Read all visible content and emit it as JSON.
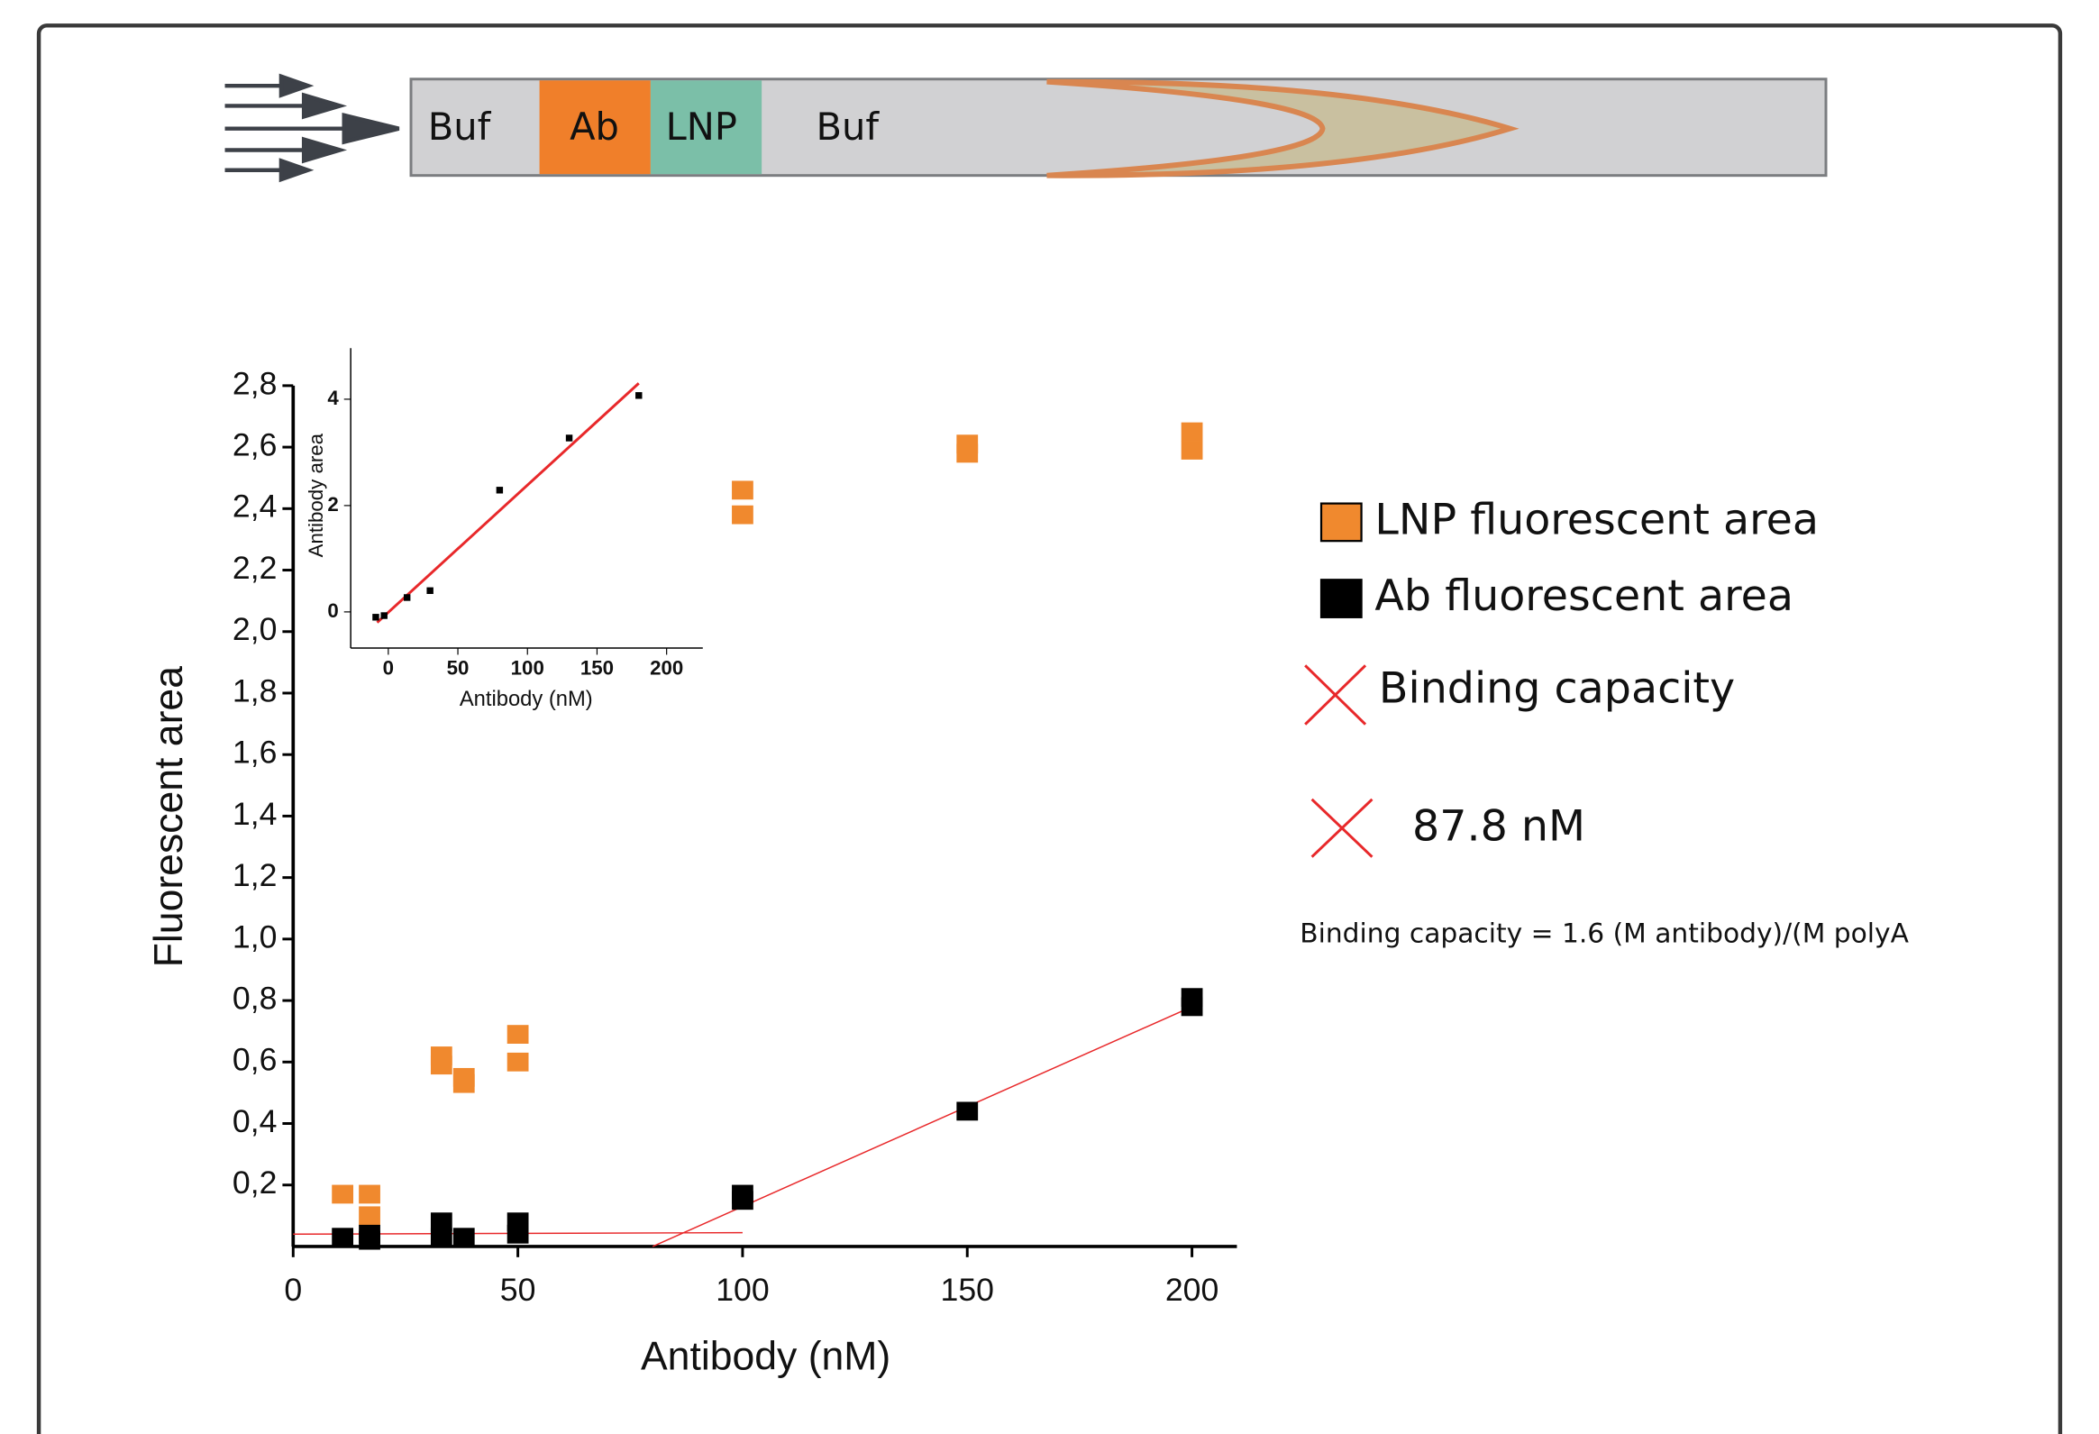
{
  "diagram": {
    "segments": [
      "Buf",
      "Ab",
      "LNP",
      "Buf"
    ]
  },
  "chart_data": [
    {
      "type": "scatter",
      "x_label": "Antibody (nM)",
      "y_label": "Fluorescent area",
      "xlim": [
        0,
        210
      ],
      "ylim": [
        0,
        2.8
      ],
      "xticks": [
        0,
        50,
        100,
        150,
        200
      ],
      "yticks": [
        {
          "value": 0.2,
          "label": "0,2"
        },
        {
          "value": 0.4,
          "label": "0,4"
        },
        {
          "value": 0.6,
          "label": "0,6"
        },
        {
          "value": 0.8,
          "label": "0,8"
        },
        {
          "value": 1.0,
          "label": "1,0"
        },
        {
          "value": 1.2,
          "label": "1,2"
        },
        {
          "value": 1.4,
          "label": "1,4"
        },
        {
          "value": 1.6,
          "label": "1,6"
        },
        {
          "value": 1.8,
          "label": "1,8"
        },
        {
          "value": 2.0,
          "label": "2,0"
        },
        {
          "value": 2.2,
          "label": "2,2"
        },
        {
          "value": 2.4,
          "label": "2,4"
        },
        {
          "value": 2.6,
          "label": "2,6"
        },
        {
          "value": 2.8,
          "label": "2,8"
        }
      ],
      "series": [
        {
          "name": "LNP fluorescent area",
          "color": "#f0892e",
          "x": [
            11,
            17,
            17,
            33,
            33,
            38,
            38,
            50,
            50,
            100,
            100,
            150,
            150,
            200,
            200
          ],
          "values": [
            0.17,
            0.17,
            0.1,
            0.62,
            0.59,
            0.55,
            0.53,
            0.69,
            0.6,
            2.46,
            2.38,
            2.61,
            2.58,
            2.65,
            2.59
          ]
        },
        {
          "name": "Ab fluorescent area",
          "color": "#000000",
          "x": [
            11,
            17,
            17,
            33,
            33,
            38,
            50,
            50,
            100,
            100,
            150,
            200,
            200
          ],
          "values": [
            0.03,
            0.04,
            0.02,
            0.08,
            0.03,
            0.03,
            0.08,
            0.04,
            0.17,
            0.15,
            0.44,
            0.81,
            0.78
          ]
        }
      ],
      "fit_label": "Binding capacity",
      "fit_color": "#e8282a",
      "fit_lines": [
        {
          "x": [
            0,
            100
          ],
          "values": [
            0.04,
            0.045
          ]
        },
        {
          "x": [
            80,
            200
          ],
          "values": [
            0,
            0.78
          ]
        }
      ],
      "annotations": [
        "87.8 nM",
        "Binding capacity = 1.6 (M antibody)/(M polyA"
      ]
    },
    {
      "type": "scatter",
      "x_label": "Antibody (nM)",
      "y_label": "Antibody area",
      "xlim": [
        -27,
        226
      ],
      "ylim": [
        -0.68,
        4.96
      ],
      "xticks": [
        0,
        50,
        100,
        150,
        200
      ],
      "yticks": [
        0,
        2,
        4
      ],
      "series": [
        {
          "color": "#000000",
          "x": [
            -9,
            -3,
            13.5,
            30,
            80,
            130,
            180
          ],
          "values": [
            -0.1,
            -0.07,
            0.27,
            0.4,
            2.29,
            3.27,
            4.07
          ]
        }
      ],
      "fit_color": "#e8282a",
      "fit_lines": [
        {
          "x": [
            -8,
            180
          ],
          "values": [
            -0.2,
            4.3
          ]
        }
      ]
    }
  ]
}
